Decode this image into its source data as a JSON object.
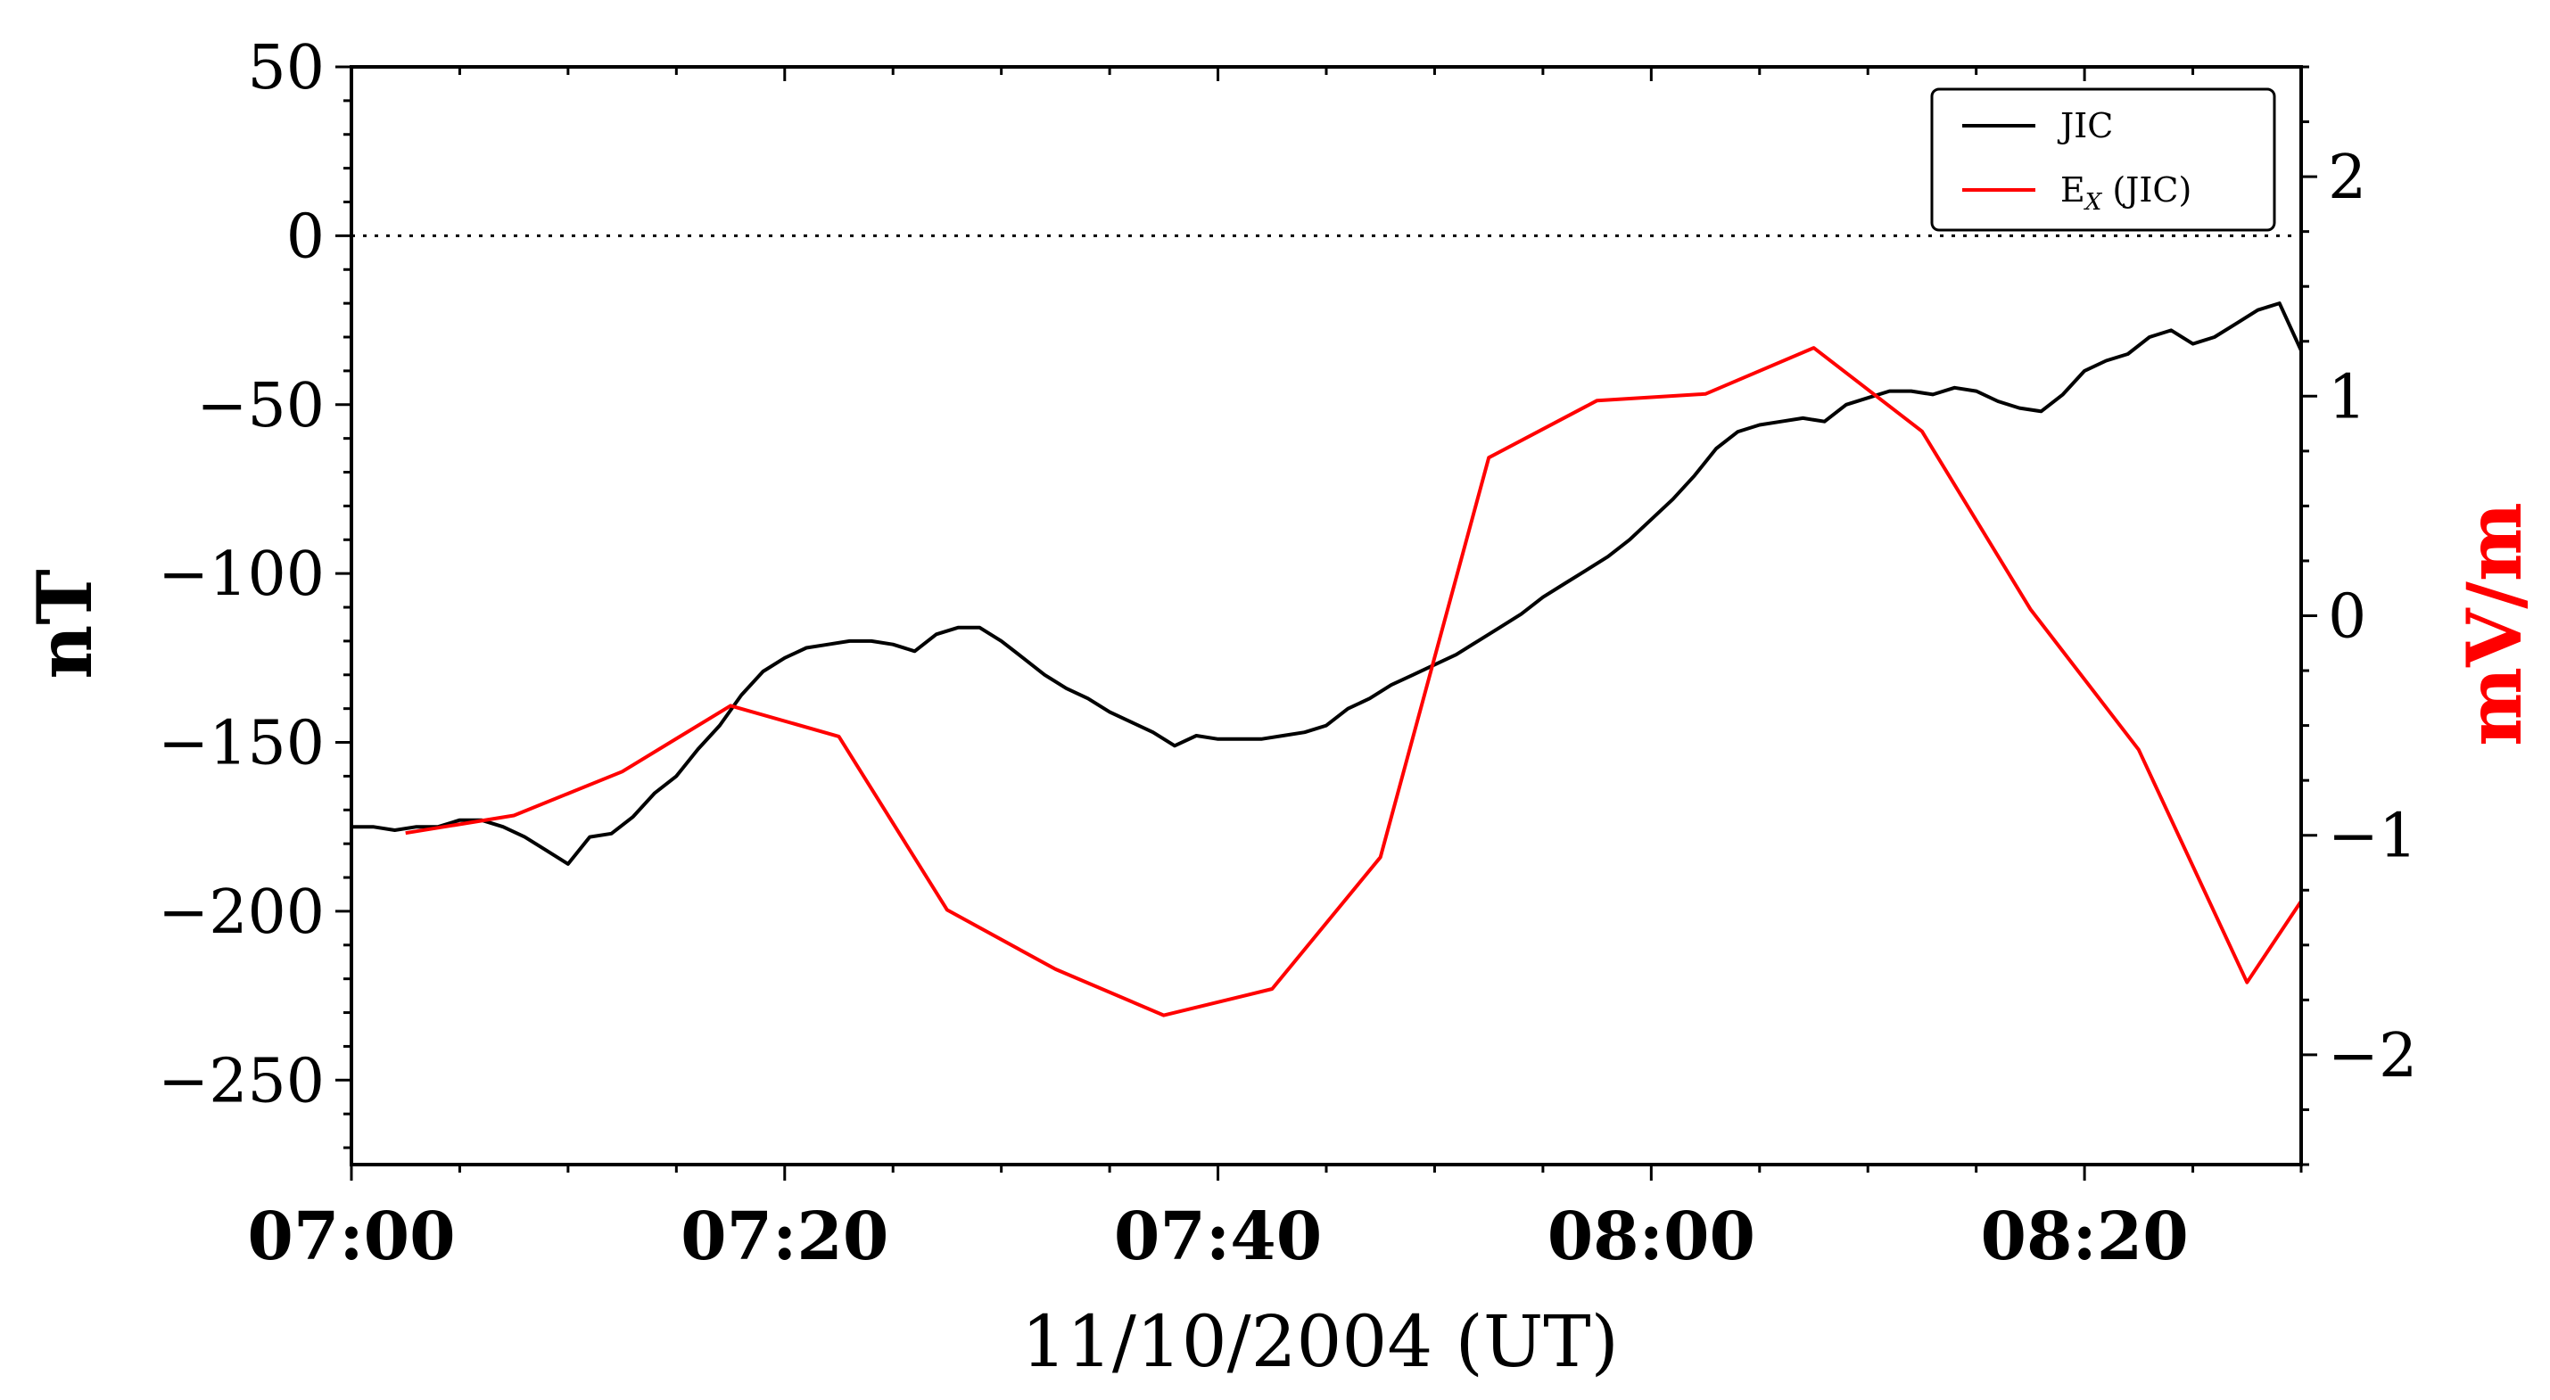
{
  "chart_data": {
    "type": "line",
    "xlabel": "11/10/2004 (UT)",
    "ylabel": "nT",
    "y2label": "mV/m",
    "xlim": [
      0,
      90
    ],
    "ylim": [
      -275,
      50
    ],
    "y2lim": [
      -2.5,
      2.5
    ],
    "x_ticks": [
      0,
      20,
      40,
      60,
      80
    ],
    "x_tick_labels": [
      "07:00",
      "07:20",
      "07:40",
      "08:00",
      "08:20"
    ],
    "y_ticks": [
      50,
      0,
      -50,
      -100,
      -150,
      -200,
      -250
    ],
    "y_tick_labels": [
      "50",
      "0",
      "−50",
      "−100",
      "−150",
      "−200",
      "−250"
    ],
    "y2_ticks": [
      2,
      1,
      0,
      -1,
      -2
    ],
    "y2_tick_labels": [
      "2",
      "1",
      "0",
      "−1",
      "−2"
    ],
    "reference_line_y": 0,
    "legend_position": "top-right",
    "series": [
      {
        "name": "JIC",
        "axis": "left",
        "color": "#000000",
        "x": [
          0,
          1,
          2,
          3,
          4,
          5,
          6,
          7,
          8,
          9,
          10,
          11,
          12,
          13,
          14,
          15,
          16,
          17,
          18,
          19,
          20,
          21,
          22,
          23,
          24,
          25,
          26,
          27,
          28,
          29,
          30,
          31,
          32,
          33,
          34,
          35,
          36,
          37,
          38,
          39,
          40,
          41,
          42,
          43,
          44,
          45,
          46,
          47,
          48,
          49,
          50,
          51,
          52,
          53,
          54,
          55,
          56,
          57,
          58,
          59,
          60,
          61,
          62,
          63,
          64,
          65,
          66,
          67,
          68,
          69,
          70,
          71,
          72,
          73,
          74,
          75,
          76,
          77,
          78,
          79,
          80,
          81,
          82,
          83,
          84,
          85,
          86,
          87,
          88,
          89,
          90
        ],
        "values": [
          -175,
          -175,
          -176,
          -175,
          -175,
          -173,
          -173,
          -175,
          -178,
          -182,
          -186,
          -178,
          -177,
          -172,
          -165,
          -160,
          -152,
          -145,
          -136,
          -129,
          -125,
          -122,
          -121,
          -120,
          -120,
          -121,
          -123,
          -118,
          -116,
          -116,
          -120,
          -125,
          -130,
          -134,
          -137,
          -141,
          -144,
          -147,
          -151,
          -148,
          -149,
          -149,
          -149,
          -148,
          -147,
          -145,
          -140,
          -137,
          -133,
          -130,
          -127,
          -124,
          -120,
          -116,
          -112,
          -107,
          -103,
          -99,
          -95,
          -90,
          -84,
          -78,
          -71,
          -63,
          -58,
          -56,
          -55,
          -54,
          -55,
          -50,
          -48,
          -46,
          -46,
          -47,
          -45,
          -46,
          -49,
          -51,
          -52,
          -47,
          -40,
          -37,
          -35,
          -30,
          -28,
          -32,
          -30,
          -26,
          -22,
          -20,
          -34
        ]
      },
      {
        "name": "E_X (JIC)",
        "axis": "right",
        "color": "#ff0000",
        "x": [
          2.5,
          7.5,
          12.5,
          17.5,
          22.5,
          27.5,
          32.5,
          37.5,
          42.5,
          47.5,
          52.5,
          57.5,
          62.5,
          67.5,
          72.5,
          77.5,
          82.5,
          87.5,
          90
        ],
        "values": [
          -0.99,
          -0.91,
          -0.71,
          -0.41,
          -0.55,
          -1.34,
          -1.61,
          -1.82,
          -1.7,
          -1.1,
          0.72,
          0.98,
          1.01,
          1.22,
          0.84,
          0.03,
          -0.61,
          -1.67,
          -1.3
        ]
      }
    ]
  },
  "legend": {
    "item_1": "JIC",
    "item_2_main": "E",
    "item_2_sub": "X",
    "item_2_rest": " (JIC)"
  }
}
